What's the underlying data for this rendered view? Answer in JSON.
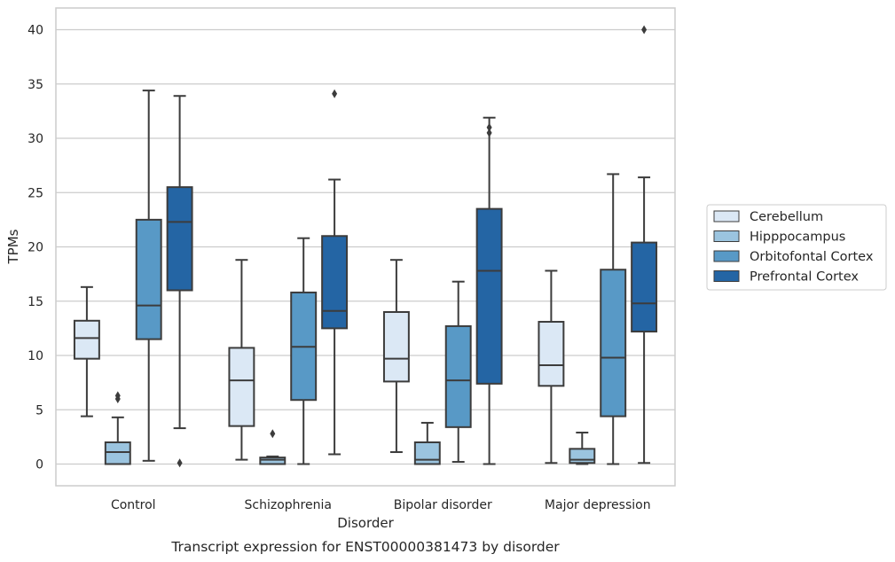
{
  "chart_data": {
    "type": "box",
    "xlabel": "Disorder",
    "ylabel": "TPMs",
    "caption": "Transcript expression for ENST00000381473 by disorder",
    "ylim": [
      -2,
      42
    ],
    "yticks": [
      0,
      5,
      10,
      15,
      20,
      25,
      30,
      35,
      40
    ],
    "grid": "horizontal",
    "legend_position": "right",
    "categories": [
      "Control",
      "Schizophrenia",
      "Bipolar disorder",
      "Major depression"
    ],
    "series": [
      {
        "name": "Cerebellum",
        "color": "#dbe8f5",
        "boxes": [
          {
            "whisker_low": 4.4,
            "q1": 9.7,
            "median": 11.6,
            "q3": 13.2,
            "whisker_high": 16.3,
            "outliers": []
          },
          {
            "whisker_low": 0.4,
            "q1": 3.5,
            "median": 7.7,
            "q3": 10.7,
            "whisker_high": 18.8,
            "outliers": []
          },
          {
            "whisker_low": 1.1,
            "q1": 7.6,
            "median": 9.7,
            "q3": 14.0,
            "whisker_high": 18.8,
            "outliers": []
          },
          {
            "whisker_low": 0.1,
            "q1": 7.2,
            "median": 9.1,
            "q3": 13.1,
            "whisker_high": 17.8,
            "outliers": []
          }
        ]
      },
      {
        "name": "Hipppocampus",
        "color": "#9bc4df",
        "boxes": [
          {
            "whisker_low": 0.0,
            "q1": 0.0,
            "median": 1.1,
            "q3": 2.0,
            "whisker_high": 4.3,
            "outliers": [
              6.0,
              6.3
            ]
          },
          {
            "whisker_low": 0.0,
            "q1": 0.0,
            "median": 0.4,
            "q3": 0.6,
            "whisker_high": 0.7,
            "outliers": [
              2.8
            ]
          },
          {
            "whisker_low": 0.0,
            "q1": 0.0,
            "median": 0.4,
            "q3": 2.0,
            "whisker_high": 3.8,
            "outliers": []
          },
          {
            "whisker_low": 0.0,
            "q1": 0.1,
            "median": 0.4,
            "q3": 1.4,
            "whisker_high": 2.9,
            "outliers": []
          }
        ]
      },
      {
        "name": "Orbitofontal Cortex",
        "color": "#5899c6",
        "boxes": [
          {
            "whisker_low": 0.3,
            "q1": 11.5,
            "median": 14.6,
            "q3": 22.5,
            "whisker_high": 34.4,
            "outliers": []
          },
          {
            "whisker_low": 0.0,
            "q1": 5.9,
            "median": 10.8,
            "q3": 15.8,
            "whisker_high": 20.8,
            "outliers": []
          },
          {
            "whisker_low": 0.2,
            "q1": 3.4,
            "median": 7.7,
            "q3": 12.7,
            "whisker_high": 16.8,
            "outliers": []
          },
          {
            "whisker_low": 0.0,
            "q1": 4.4,
            "median": 9.8,
            "q3": 17.9,
            "whisker_high": 26.7,
            "outliers": []
          }
        ]
      },
      {
        "name": "Prefrontal Cortex",
        "color": "#2465a4",
        "boxes": [
          {
            "whisker_low": 3.3,
            "q1": 16.0,
            "median": 22.3,
            "q3": 25.5,
            "whisker_high": 33.9,
            "outliers": [
              0.1
            ]
          },
          {
            "whisker_low": 0.9,
            "q1": 12.5,
            "median": 14.1,
            "q3": 21.0,
            "whisker_high": 26.2,
            "outliers": [
              34.1
            ]
          },
          {
            "whisker_low": 0.0,
            "q1": 7.4,
            "median": 17.8,
            "q3": 23.5,
            "whisker_high": 31.9,
            "outliers": [
              30.5,
              31.0
            ]
          },
          {
            "whisker_low": 0.1,
            "q1": 12.2,
            "median": 14.8,
            "q3": 20.4,
            "whisker_high": 26.4,
            "outliers": [
              40.0
            ]
          }
        ]
      }
    ]
  }
}
